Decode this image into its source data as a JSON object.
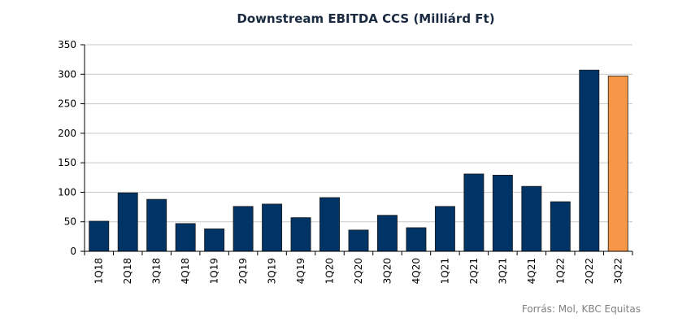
{
  "chart_data": {
    "type": "bar",
    "title": "Downstream EBITDA CCS (Milliárd Ft)",
    "xlabel": "",
    "ylabel": "",
    "categories": [
      "1Q18",
      "2Q18",
      "3Q18",
      "4Q18",
      "1Q19",
      "2Q19",
      "3Q19",
      "4Q19",
      "1Q20",
      "2Q20",
      "3Q20",
      "4Q20",
      "1Q21",
      "2Q21",
      "3Q21",
      "4Q21",
      "1Q22",
      "2Q22",
      "3Q22"
    ],
    "values": [
      51,
      99,
      88,
      47,
      38,
      76,
      80,
      57,
      91,
      36,
      61,
      40,
      76,
      131,
      129,
      110,
      84,
      307,
      297
    ],
    "ylim": [
      0,
      350
    ],
    "yticks": [
      0,
      50,
      100,
      150,
      200,
      250,
      300,
      350
    ],
    "grid": true,
    "colors": {
      "default_bar": "#003366",
      "highlight_bar": "#F79646",
      "grid": "#C8C8C8",
      "axis": "#000000"
    },
    "highlight_index": 18
  },
  "source": "Forrás: Mol, KBC Equitas"
}
